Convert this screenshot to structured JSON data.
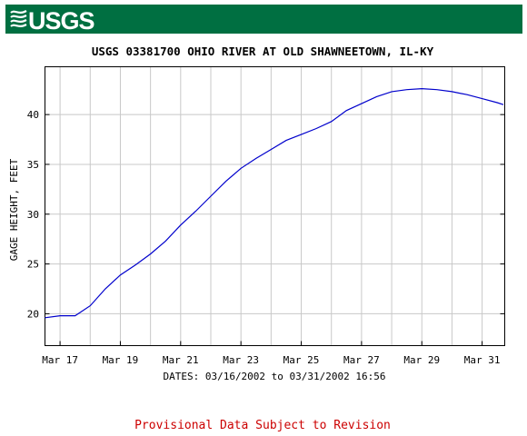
{
  "header": {
    "logo_text": "USGS",
    "brand_color": "#006f41"
  },
  "chart_data": {
    "type": "line",
    "title": "USGS 03381700 OHIO RIVER AT OLD SHAWNEETOWN, IL-KY",
    "ylabel": "GAGE HEIGHT, FEET",
    "xlabel": "DATES: 03/16/2002 to 03/31/2002 16:56",
    "x_tick_labels": [
      "Mar 17",
      "Mar 19",
      "Mar 21",
      "Mar 23",
      "Mar 25",
      "Mar 27",
      "Mar 29",
      "Mar 31"
    ],
    "y_tick_labels": [
      "20",
      "25",
      "30",
      "35",
      "40"
    ],
    "ylim": [
      16.8,
      44.8
    ],
    "xlim": [
      "2002-03-16 12:00",
      "2002-03-31 18:00"
    ],
    "grid": true,
    "line_color": "#0000cc",
    "series": [
      {
        "x": [
          "2002-03-16 12:00",
          "2002-03-17 00:00",
          "2002-03-17 12:00",
          "2002-03-18 00:00",
          "2002-03-18 12:00",
          "2002-03-19 00:00",
          "2002-03-19 12:00",
          "2002-03-20 00:00",
          "2002-03-20 12:00",
          "2002-03-21 00:00",
          "2002-03-21 12:00",
          "2002-03-22 00:00",
          "2002-03-22 12:00",
          "2002-03-23 00:00",
          "2002-03-23 12:00",
          "2002-03-24 00:00",
          "2002-03-24 12:00",
          "2002-03-25 00:00",
          "2002-03-25 12:00",
          "2002-03-26 00:00",
          "2002-03-26 12:00",
          "2002-03-27 00:00",
          "2002-03-27 12:00",
          "2002-03-28 00:00",
          "2002-03-28 12:00",
          "2002-03-29 00:00",
          "2002-03-29 12:00",
          "2002-03-30 00:00",
          "2002-03-30 12:00",
          "2002-03-31 00:00",
          "2002-03-31 12:00",
          "2002-03-31 16:56"
        ],
        "values": [
          19.6,
          19.8,
          19.8,
          20.8,
          22.5,
          23.9,
          24.9,
          26.0,
          27.3,
          28.9,
          30.3,
          31.8,
          33.3,
          34.6,
          35.6,
          36.5,
          37.4,
          38.0,
          38.6,
          39.3,
          40.4,
          41.1,
          41.8,
          42.3,
          42.5,
          42.6,
          42.5,
          42.3,
          42.0,
          41.6,
          41.2,
          41.0
        ]
      }
    ]
  },
  "footer": {
    "notice": "Provisional Data Subject to Revision",
    "notice_color": "#cc0000"
  }
}
